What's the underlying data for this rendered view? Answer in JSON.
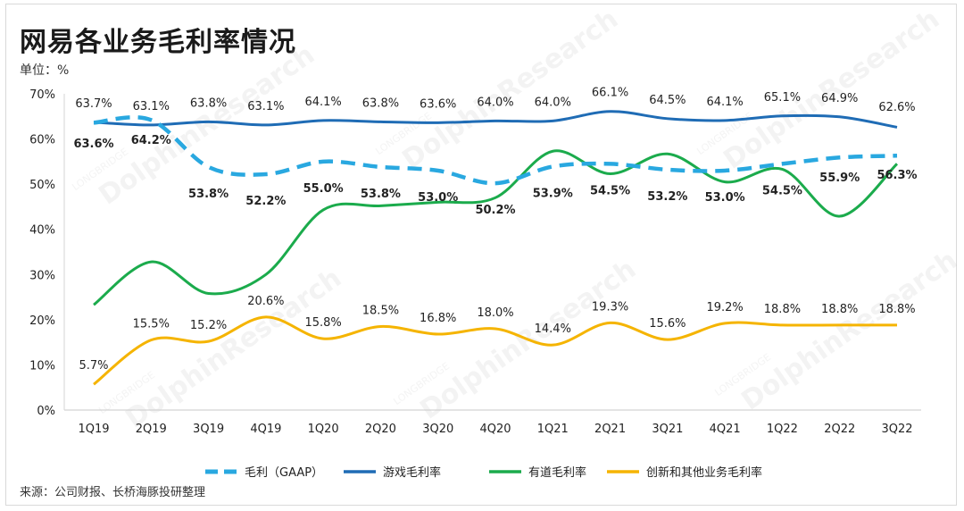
{
  "header": {
    "title": "网易各业务毛利率情况",
    "unit": "单位：%"
  },
  "footer": {
    "source": "来源：公司财报、长桥海豚投研整理"
  },
  "watermark": {
    "text": "DolphinResearch",
    "subtext": "LONGBRIDGE"
  },
  "chart_data": {
    "type": "line",
    "categories": [
      "1Q19",
      "2Q19",
      "3Q19",
      "4Q19",
      "1Q20",
      "2Q20",
      "3Q20",
      "4Q20",
      "1Q21",
      "2Q21",
      "3Q21",
      "4Q21",
      "1Q22",
      "2Q22",
      "3Q22"
    ],
    "ylim": [
      0,
      70
    ],
    "yticks": [
      "0%",
      "10%",
      "20%",
      "30%",
      "40%",
      "50%",
      "60%",
      "70%"
    ],
    "grid": false,
    "legend_position": "bottom",
    "series": [
      {
        "name": "毛利（GAAP）",
        "color": "#29a8e0",
        "dashed": true,
        "values": [
          63.6,
          64.2,
          53.8,
          52.2,
          55.0,
          53.8,
          53.0,
          50.2,
          53.9,
          54.5,
          53.2,
          53.0,
          54.5,
          55.9,
          56.3
        ],
        "labels": [
          "63.6%",
          "64.2%",
          "53.8%",
          "52.2%",
          "55.0%",
          "53.8%",
          "53.0%",
          "50.2%",
          "53.9%",
          "54.5%",
          "53.2%",
          "53.0%",
          "54.5%",
          "55.9%",
          "56.3%"
        ]
      },
      {
        "name": "游戏毛利率",
        "color": "#1f6cb5",
        "dashed": false,
        "values": [
          63.7,
          63.1,
          63.8,
          63.1,
          64.1,
          63.8,
          63.6,
          64.0,
          64.0,
          66.1,
          64.5,
          64.1,
          65.1,
          64.9,
          62.6
        ],
        "labels": [
          "63.7%",
          "63.1%",
          "63.8%",
          "63.1%",
          "64.1%",
          "63.8%",
          "63.6%",
          "64.0%",
          "64.0%",
          "66.1%",
          "64.5%",
          "64.1%",
          "65.1%",
          "64.9%",
          "62.6%"
        ]
      },
      {
        "name": "有道毛利率",
        "color": "#1bab4c",
        "dashed": false,
        "values": [
          23.3,
          32.8,
          25.8,
          30.0,
          44.3,
          45.2,
          46.0,
          47.0,
          57.3,
          52.3,
          56.7,
          50.5,
          53.3,
          42.9,
          54.5
        ],
        "labels": []
      },
      {
        "name": "创新和其他业务毛利率",
        "color": "#f5b400",
        "dashed": false,
        "values": [
          5.7,
          15.5,
          15.2,
          20.6,
          15.8,
          18.5,
          16.8,
          18.0,
          14.4,
          19.3,
          15.6,
          19.2,
          18.8,
          18.8,
          18.8
        ],
        "labels": [
          "5.7%",
          "15.5%",
          "15.2%",
          "20.6%",
          "15.8%",
          "18.5%",
          "16.8%",
          "18.0%",
          "14.4%",
          "19.3%",
          "15.6%",
          "19.2%",
          "18.8%",
          "18.8%",
          "18.8%"
        ]
      }
    ]
  }
}
